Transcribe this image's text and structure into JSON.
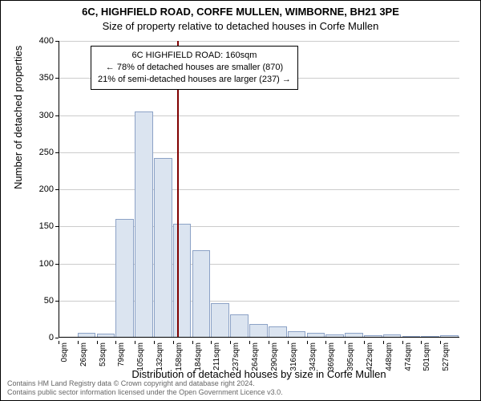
{
  "title": "6C, HIGHFIELD ROAD, CORFE MULLEN, WIMBORNE, BH21 3PE",
  "subtitle": "Size of property relative to detached houses in Corfe Mullen",
  "ylabel": "Number of detached properties",
  "xlabel": "Distribution of detached houses by size in Corfe Mullen",
  "ylim": [
    0,
    400
  ],
  "ytick_step": 50,
  "xticks": [
    "0sqm",
    "26sqm",
    "53sqm",
    "79sqm",
    "105sqm",
    "132sqm",
    "158sqm",
    "184sqm",
    "211sqm",
    "237sqm",
    "264sqm",
    "290sqm",
    "316sqm",
    "343sqm",
    "369sqm",
    "395sqm",
    "422sqm",
    "448sqm",
    "474sqm",
    "501sqm",
    "527sqm"
  ],
  "values": [
    0,
    6,
    5,
    160,
    305,
    242,
    153,
    118,
    46,
    31,
    18,
    15,
    9,
    7,
    4,
    6,
    3,
    4,
    2,
    2,
    3
  ],
  "bar_fill": "#dbe4f0",
  "bar_stroke": "#8ca2c6",
  "grid_color": "#cccccc",
  "marker_color": "#800000",
  "marker_x": 160,
  "x_max": 540,
  "annotation": {
    "line1": "6C HIGHFIELD ROAD: 160sqm",
    "line2": "← 78% of detached houses are smaller (870)",
    "line3": "21% of semi-detached houses are larger (237) →"
  },
  "footer": {
    "line1": "Contains HM Land Registry data © Crown copyright and database right 2024.",
    "line2": "Contains public sector information licensed under the Open Government Licence v3.0."
  }
}
